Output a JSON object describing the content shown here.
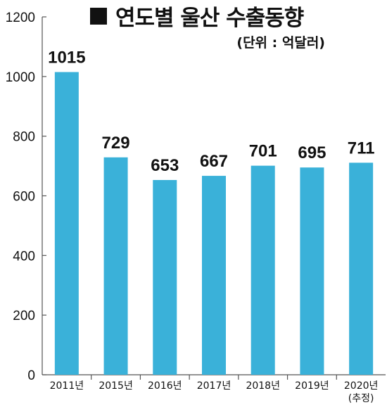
{
  "chart_data": {
    "type": "bar",
    "title": "연도별 울산 수출동향",
    "subtitle": "(단위 : 억달러)",
    "categories": [
      "2011년",
      "2015년",
      "2016년",
      "2017년",
      "2018년",
      "2019년",
      "2020년"
    ],
    "category_notes": [
      "",
      "",
      "",
      "",
      "",
      "",
      "(추정)"
    ],
    "values": [
      1015,
      729,
      653,
      667,
      701,
      695,
      711
    ],
    "value_labels": [
      "1015",
      "729",
      "653",
      "667",
      "701",
      "695",
      "711"
    ],
    "ylim": [
      0,
      1200
    ],
    "yticks": [
      0,
      200,
      400,
      600,
      800,
      1000,
      1200
    ],
    "xlabel": "",
    "ylabel": "",
    "grid": false,
    "colors": {
      "bar": "#3ab1d9",
      "axis": "#555555",
      "text": "#111111"
    }
  }
}
